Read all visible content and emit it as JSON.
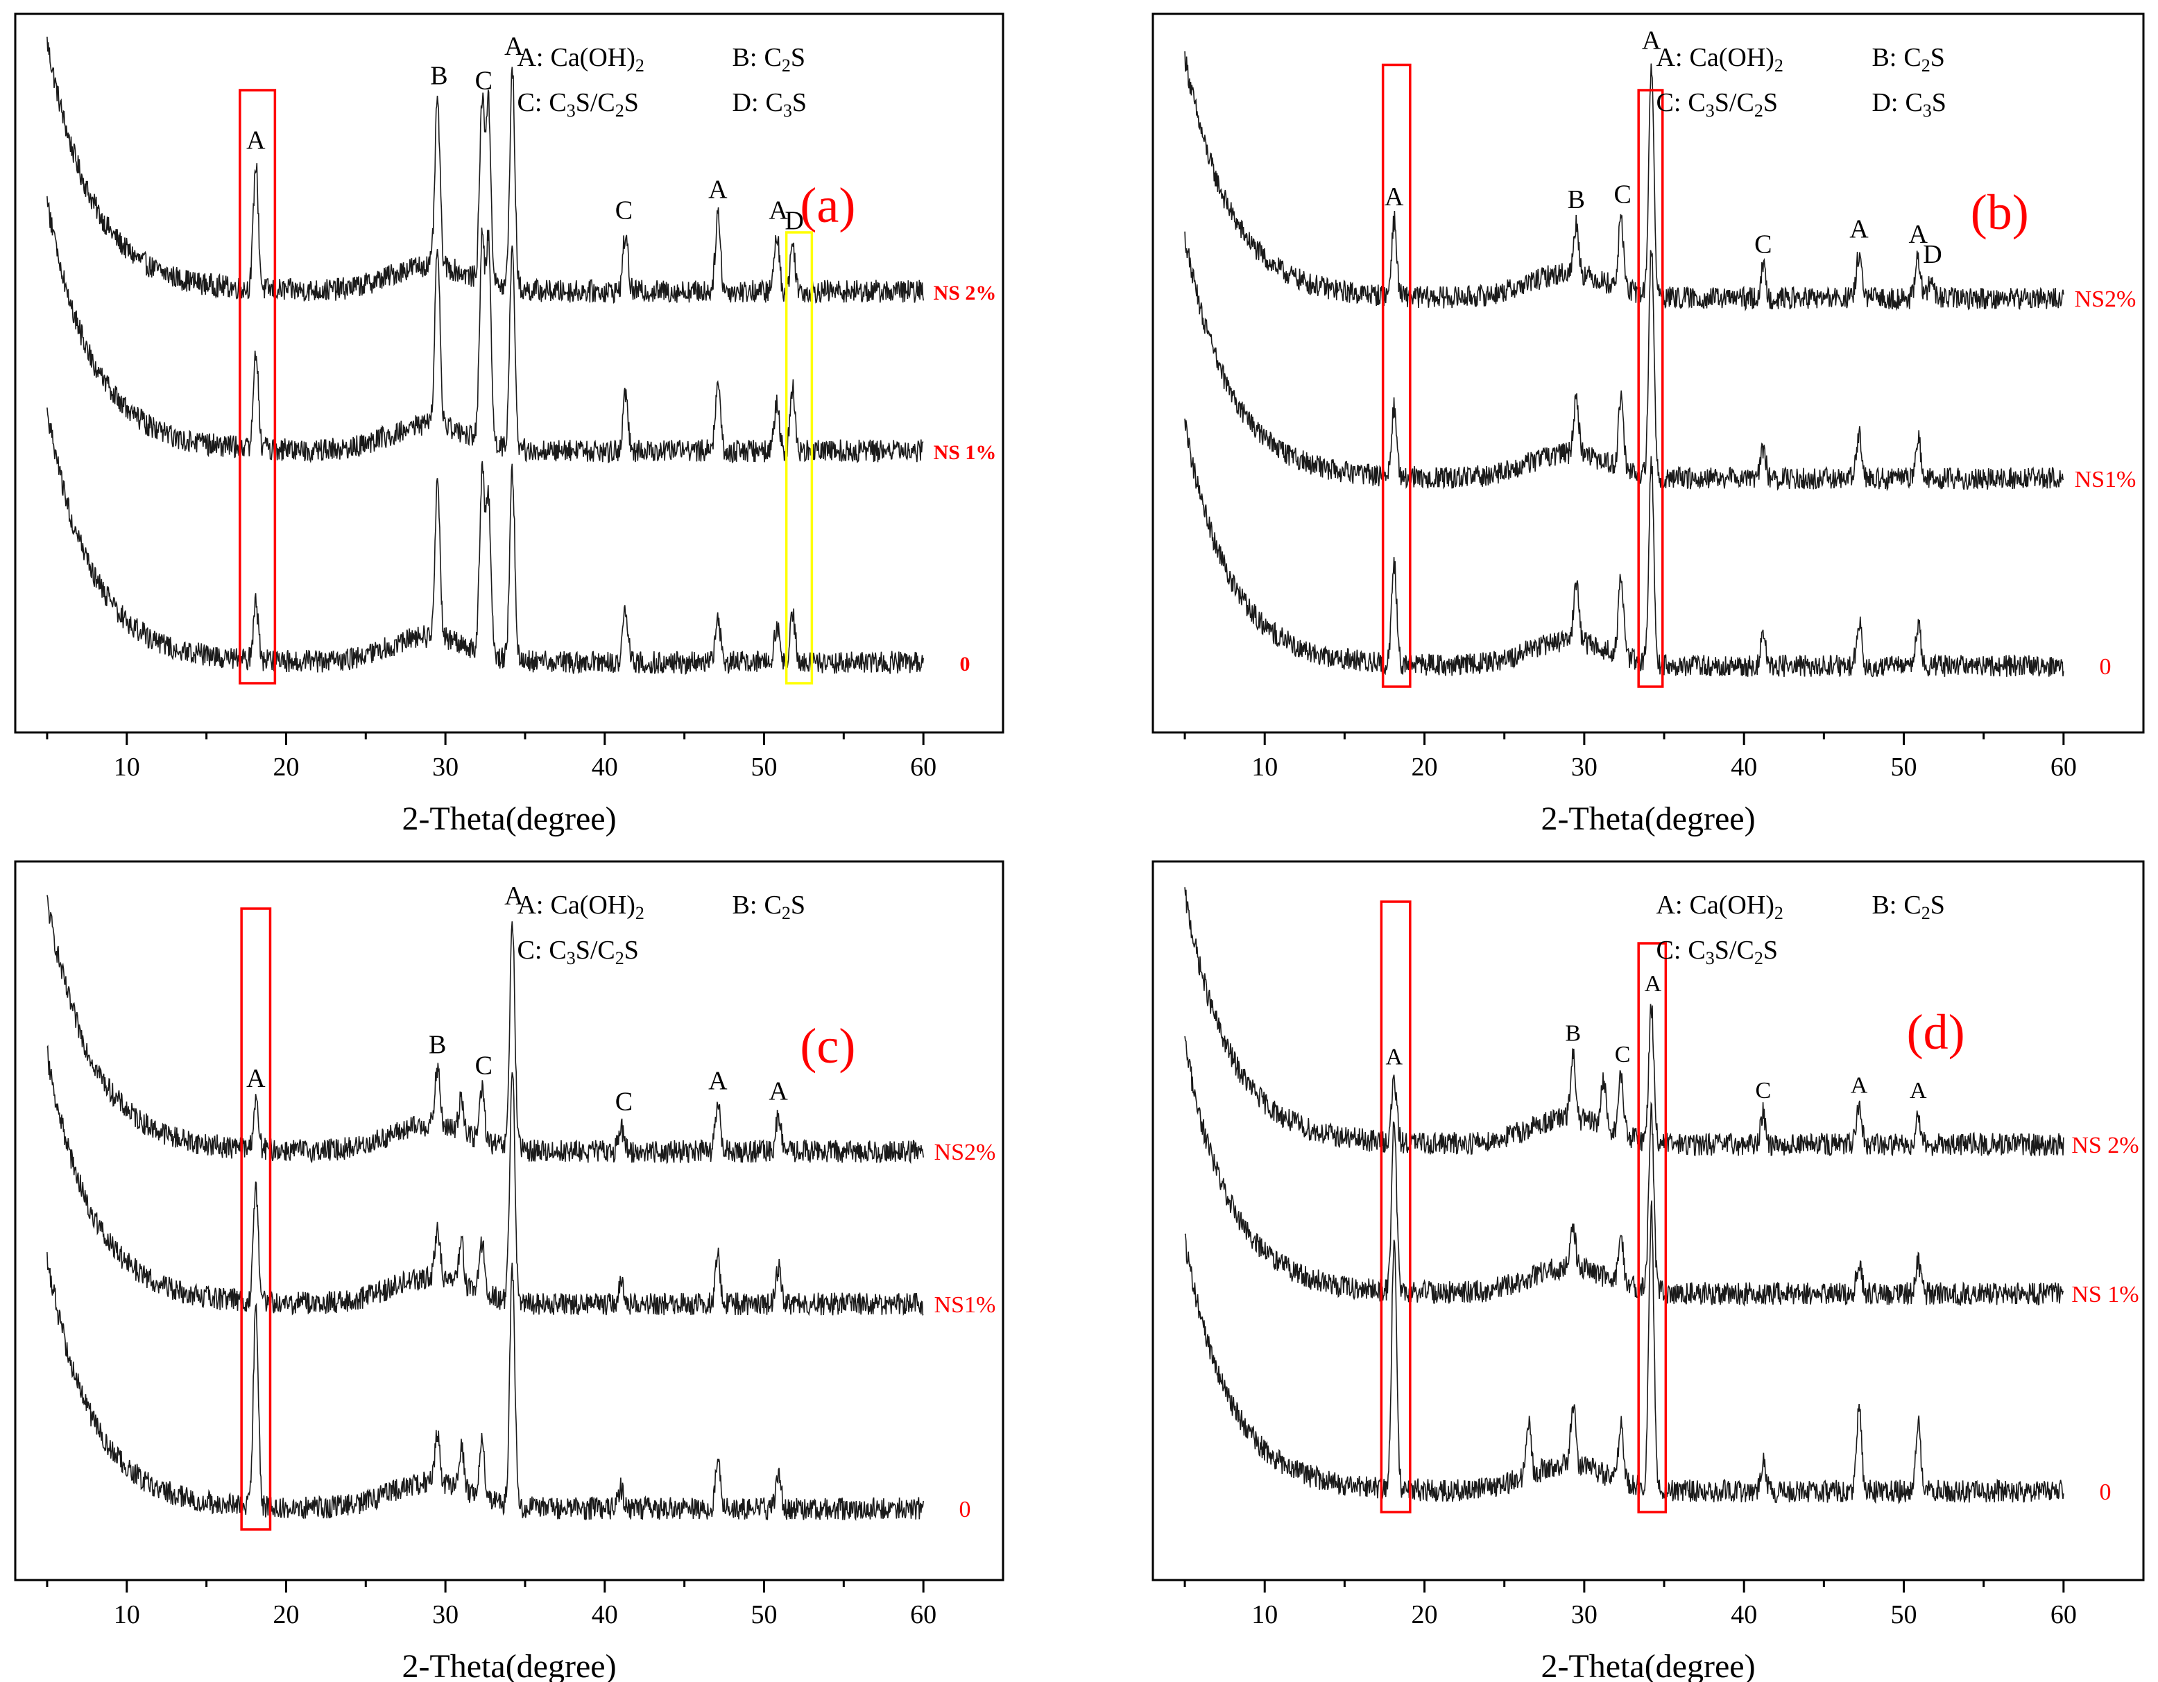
{
  "colors": {
    "axis": "#000000",
    "trace": "#1a1a1a",
    "sample_label": "#ff0000",
    "panel_letter": "#ff0000",
    "highlight_box": "#ff0000",
    "highlight_box_alt": "#ffff00"
  },
  "chart_data": [
    {
      "type": "line",
      "panel": "(a)",
      "xlabel": "2-Theta(degree)",
      "ylabel": "",
      "xlim": [
        3,
        65
      ],
      "xticks": [
        "10",
        "20",
        "30",
        "40",
        "50",
        "60"
      ],
      "y_axis_ticks": false,
      "legend": [
        {
          "key": "A:",
          "name": "Ca(OH)",
          "sub": "2",
          "rest": ""
        },
        {
          "key": "B:",
          "name": "C",
          "sub": "2",
          "rest": "S"
        },
        {
          "key": "C:",
          "name": "C",
          "sub": "3",
          "rest": "S/C",
          "sub2": "2",
          "rest2": "S"
        },
        {
          "key": "D:",
          "name": "C",
          "sub": "3",
          "rest": "S"
        }
      ],
      "series": [
        {
          "name": "NS 2%",
          "x_range": [
            5,
            60
          ],
          "baseline": 2,
          "amplitude": 1.0,
          "peaks": [
            [
              18.1,
              1.2
            ],
            [
              29.5,
              1.6
            ],
            [
              32.3,
              1.7
            ],
            [
              32.7,
              1.7
            ],
            [
              34.2,
              2.1
            ],
            [
              41.3,
              0.55
            ],
            [
              47.1,
              0.75
            ],
            [
              50.8,
              0.55
            ],
            [
              51.8,
              0.45
            ]
          ]
        },
        {
          "name": "NS 1%",
          "x_range": [
            5,
            60
          ],
          "baseline": 1,
          "amplitude": 1.0,
          "peaks": [
            [
              18.1,
              0.95
            ],
            [
              29.5,
              1.75
            ],
            [
              32.3,
              1.9
            ],
            [
              32.7,
              1.9
            ],
            [
              34.2,
              2.0
            ],
            [
              41.3,
              0.55
            ],
            [
              47.1,
              0.65
            ],
            [
              50.8,
              0.45
            ],
            [
              51.8,
              0.6
            ]
          ]
        },
        {
          "name": "0",
          "x_range": [
            5,
            60
          ],
          "baseline": 0,
          "amplitude": 1.0,
          "peaks": [
            [
              18.1,
              0.55
            ],
            [
              29.5,
              1.45
            ],
            [
              32.3,
              1.7
            ],
            [
              32.7,
              1.5
            ],
            [
              34.2,
              1.8
            ],
            [
              41.3,
              0.55
            ],
            [
              47.1,
              0.45
            ],
            [
              50.8,
              0.35
            ],
            [
              51.8,
              0.45
            ]
          ]
        }
      ],
      "peak_labels": [
        {
          "label": "A",
          "x": 18.1
        },
        {
          "label": "B",
          "x": 29.6
        },
        {
          "label": "C",
          "x": 32.4
        },
        {
          "label": "A",
          "x": 34.3
        },
        {
          "label": "C",
          "x": 41.2
        },
        {
          "label": "A",
          "x": 47.1
        },
        {
          "label": "A",
          "x": 50.9
        },
        {
          "label": "D",
          "x": 51.9
        }
      ],
      "highlight_boxes": [
        {
          "x_from": 17.1,
          "x_to": 19.3,
          "color": "red"
        },
        {
          "x_from": 51.4,
          "x_to": 53.0,
          "color": "yellow"
        }
      ]
    },
    {
      "type": "line",
      "panel": "(b)",
      "xlabel": "2-Theta(degree)",
      "ylabel": "",
      "xlim": [
        3,
        65
      ],
      "xticks": [
        "10",
        "20",
        "30",
        "40",
        "50",
        "60"
      ],
      "y_axis_ticks": false,
      "legend": [
        {
          "key": "A:",
          "name": "Ca(OH)",
          "sub": "2",
          "rest": ""
        },
        {
          "key": "B:",
          "name": "C",
          "sub": "2",
          "rest": "S"
        },
        {
          "key": "C:",
          "name": "C",
          "sub": "3",
          "rest": "S/C",
          "sub2": "2",
          "rest2": "S"
        },
        {
          "key": "D:",
          "name": "C",
          "sub": "3",
          "rest": "S"
        }
      ],
      "series": [
        {
          "name": "NS2%",
          "x_range": [
            5,
            60
          ],
          "baseline": 2,
          "amplitude": 1.0,
          "peaks": [
            [
              18.1,
              0.75
            ],
            [
              29.5,
              0.5
            ],
            [
              32.3,
              0.7
            ],
            [
              34.2,
              2.3
            ],
            [
              41.2,
              0.3
            ],
            [
              47.2,
              0.45
            ],
            [
              50.9,
              0.4
            ],
            [
              51.7,
              0.2
            ]
          ]
        },
        {
          "name": "NS1%",
          "x_range": [
            5,
            60
          ],
          "baseline": 1,
          "amplitude": 1.0,
          "peaks": [
            [
              18.1,
              0.7
            ],
            [
              29.5,
              0.55
            ],
            [
              32.3,
              0.7
            ],
            [
              34.2,
              2.3
            ],
            [
              41.2,
              0.3
            ],
            [
              47.2,
              0.45
            ],
            [
              50.9,
              0.4
            ]
          ]
        },
        {
          "name": "0",
          "x_range": [
            5,
            60
          ],
          "baseline": 0,
          "amplitude": 1.0,
          "peaks": [
            [
              18.1,
              1.0
            ],
            [
              29.5,
              0.6
            ],
            [
              32.3,
              0.8
            ],
            [
              34.2,
              2.0
            ],
            [
              41.2,
              0.3
            ],
            [
              47.2,
              0.45
            ],
            [
              50.9,
              0.4
            ]
          ]
        }
      ],
      "peak_labels": [
        {
          "label": "A",
          "x": 18.1
        },
        {
          "label": "B",
          "x": 29.5
        },
        {
          "label": "C",
          "x": 32.4
        },
        {
          "label": "A",
          "x": 34.2
        },
        {
          "label": "C",
          "x": 41.2
        },
        {
          "label": "A",
          "x": 47.2
        },
        {
          "label": "A",
          "x": 50.9
        },
        {
          "label": "D",
          "x": 51.8
        }
      ],
      "highlight_boxes": [
        {
          "x_from": 17.4,
          "x_to": 19.1,
          "color": "red"
        },
        {
          "x_from": 33.4,
          "x_to": 34.9,
          "color": "red"
        }
      ]
    },
    {
      "type": "line",
      "panel": "(c)",
      "xlabel": "2-Theta(degree)",
      "ylabel": "",
      "xlim": [
        3,
        65
      ],
      "xticks": [
        "10",
        "20",
        "30",
        "40",
        "50",
        "60"
      ],
      "y_axis_ticks": false,
      "legend": [
        {
          "key": "A:",
          "name": "Ca(OH)",
          "sub": "2",
          "rest": ""
        },
        {
          "key": "B:",
          "name": "C",
          "sub": "2",
          "rest": "S"
        },
        {
          "key": "C:",
          "name": "C",
          "sub": "3",
          "rest": "S/C",
          "sub2": "2",
          "rest2": "S"
        }
      ],
      "series": [
        {
          "name": "NS2%",
          "x_range": [
            5,
            60
          ],
          "baseline": 2,
          "amplitude": 1.0,
          "peaks": [
            [
              18.1,
              0.45
            ],
            [
              29.5,
              0.55
            ],
            [
              31.0,
              0.35
            ],
            [
              32.3,
              0.5
            ],
            [
              34.2,
              2.2
            ],
            [
              41.0,
              0.25
            ],
            [
              47.1,
              0.45
            ],
            [
              50.9,
              0.35
            ]
          ]
        },
        {
          "name": "NS1%",
          "x_range": [
            5,
            60
          ],
          "baseline": 1,
          "amplitude": 1.0,
          "peaks": [
            [
              18.1,
              1.1
            ],
            [
              29.5,
              0.5
            ],
            [
              31.0,
              0.4
            ],
            [
              32.3,
              0.5
            ],
            [
              34.2,
              2.3
            ],
            [
              41.0,
              0.2
            ],
            [
              47.1,
              0.45
            ],
            [
              50.9,
              0.35
            ]
          ]
        },
        {
          "name": "0",
          "x_range": [
            5,
            60
          ],
          "baseline": 0,
          "amplitude": 1.0,
          "peaks": [
            [
              18.1,
              1.9
            ],
            [
              29.5,
              0.5
            ],
            [
              31.0,
              0.4
            ],
            [
              32.3,
              0.55
            ],
            [
              34.2,
              2.3
            ],
            [
              41.0,
              0.2
            ],
            [
              47.1,
              0.45
            ],
            [
              50.9,
              0.35
            ]
          ]
        }
      ],
      "peak_labels": [
        {
          "label": "A",
          "x": 18.1
        },
        {
          "label": "B",
          "x": 29.5
        },
        {
          "label": "C",
          "x": 32.4
        },
        {
          "label": "A",
          "x": 34.3
        },
        {
          "label": "C",
          "x": 41.2
        },
        {
          "label": "A",
          "x": 47.1
        },
        {
          "label": "A",
          "x": 50.9
        }
      ],
      "highlight_boxes": [
        {
          "x_from": 17.2,
          "x_to": 19.0,
          "color": "red"
        }
      ]
    },
    {
      "type": "line",
      "panel": "(d)",
      "xlabel": "2-Theta(degree)",
      "ylabel": "",
      "xlim": [
        3,
        65
      ],
      "xticks": [
        "10",
        "20",
        "30",
        "40",
        "50",
        "60"
      ],
      "y_axis_ticks": false,
      "legend": [
        {
          "key": "A:",
          "name": "Ca(OH)",
          "sub": "2",
          "rest": ""
        },
        {
          "key": "B:",
          "name": "C",
          "sub": "2",
          "rest": "S"
        },
        {
          "key": "C:",
          "name": "C",
          "sub": "3",
          "rest": "S/C",
          "sub2": "2",
          "rest2": "S"
        }
      ],
      "series": [
        {
          "name": "NS 2%",
          "x_range": [
            5,
            60
          ],
          "baseline": 2,
          "amplitude": 1.0,
          "peaks": [
            [
              18.1,
              0.6
            ],
            [
              29.3,
              0.6
            ],
            [
              31.2,
              0.45
            ],
            [
              32.3,
              0.55
            ],
            [
              34.2,
              1.3
            ],
            [
              41.2,
              0.3
            ],
            [
              47.2,
              0.35
            ],
            [
              50.9,
              0.3
            ]
          ]
        },
        {
          "name": "NS 1%",
          "x_range": [
            5,
            60
          ],
          "baseline": 1,
          "amplitude": 1.0,
          "peaks": [
            [
              18.1,
              1.6
            ],
            [
              29.3,
              0.4
            ],
            [
              32.3,
              0.45
            ],
            [
              34.2,
              1.7
            ],
            [
              47.2,
              0.3
            ],
            [
              50.9,
              0.3
            ]
          ]
        },
        {
          "name": "0",
          "x_range": [
            5,
            60
          ],
          "baseline": 0,
          "amplitude": 1.0,
          "peaks": [
            [
              18.1,
              2.4
            ],
            [
              26.5,
              0.5
            ],
            [
              29.3,
              0.6
            ],
            [
              32.3,
              0.55
            ],
            [
              34.2,
              2.7
            ],
            [
              41.2,
              0.3
            ],
            [
              47.2,
              0.8
            ],
            [
              50.9,
              0.7
            ]
          ]
        }
      ],
      "peak_labels": [
        {
          "label": "A",
          "x": 18.1
        },
        {
          "label": "B",
          "x": 29.3
        },
        {
          "label": "C",
          "x": 32.4
        },
        {
          "label": "A",
          "x": 34.3
        },
        {
          "label": "C",
          "x": 41.2
        },
        {
          "label": "A",
          "x": 47.2
        },
        {
          "label": "A",
          "x": 50.9
        }
      ],
      "highlight_boxes": [
        {
          "x_from": 17.3,
          "x_to": 19.1,
          "color": "red"
        },
        {
          "x_from": 33.4,
          "x_to": 35.1,
          "color": "red"
        }
      ]
    }
  ]
}
